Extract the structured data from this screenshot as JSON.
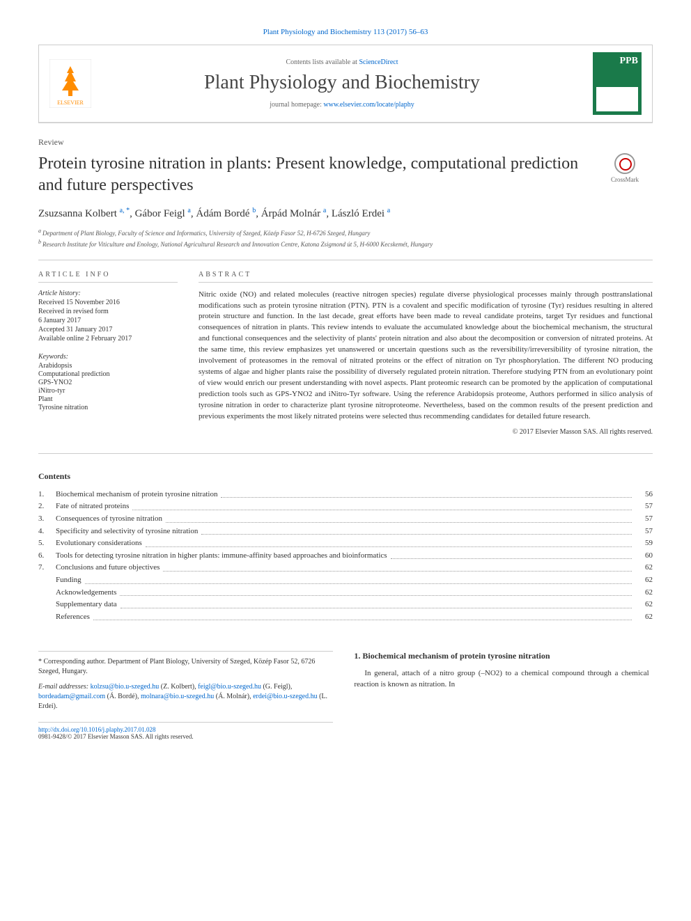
{
  "citation": "Plant Physiology and Biochemistry 113 (2017) 56–63",
  "header": {
    "contents_prefix": "Contents lists available at ",
    "contents_link": "ScienceDirect",
    "journal_name": "Plant Physiology and Biochemistry",
    "homepage_prefix": "journal homepage: ",
    "homepage_url": "www.elsevier.com/locate/plaphy",
    "cover_label": "PPB"
  },
  "article_type": "Review",
  "title": "Protein tyrosine nitration in plants: Present knowledge, computational prediction and future perspectives",
  "crossmark": "CrossMark",
  "authors": [
    {
      "name": "Zsuzsanna Kolbert",
      "sup": "a, *"
    },
    {
      "name": "Gábor Feigl",
      "sup": "a"
    },
    {
      "name": "Ádám Bordé",
      "sup": "b"
    },
    {
      "name": "Árpád Molnár",
      "sup": "a"
    },
    {
      "name": "László Erdei",
      "sup": "a"
    }
  ],
  "affiliations": [
    {
      "sup": "a",
      "text": "Department of Plant Biology, Faculty of Science and Informatics, University of Szeged, Közép Fasor 52, H-6726 Szeged, Hungary"
    },
    {
      "sup": "b",
      "text": "Research Institute for Viticulture and Enology, National Agricultural Research and Innovation Centre, Katona Zsigmond út 5, H-6000 Kecskemét, Hungary"
    }
  ],
  "info_heading": "ARTICLE INFO",
  "history": {
    "label": "Article history:",
    "items": [
      "Received 15 November 2016",
      "Received in revised form",
      "6 January 2017",
      "Accepted 31 January 2017",
      "Available online 2 February 2017"
    ]
  },
  "keywords": {
    "label": "Keywords:",
    "items": [
      "Arabidopsis",
      "Computational prediction",
      "GPS-YNO2",
      "iNitro-tyr",
      "Plant",
      "Tyrosine nitration"
    ]
  },
  "abstract_heading": "ABSTRACT",
  "abstract_text": "Nitric oxide (NO) and related molecules (reactive nitrogen species) regulate diverse physiological processes mainly through posttranslational modifications such as protein tyrosine nitration (PTN). PTN is a covalent and specific modification of tyrosine (Tyr) residues resulting in altered protein structure and function. In the last decade, great efforts have been made to reveal candidate proteins, target Tyr residues and functional consequences of nitration in plants. This review intends to evaluate the accumulated knowledge about the biochemical mechanism, the structural and functional consequences and the selectivity of plants' protein nitration and also about the decomposition or conversion of nitrated proteins. At the same time, this review emphasizes yet unanswered or uncertain questions such as the reversibility/irreversibility of tyrosine nitration, the involvement of proteasomes in the removal of nitrated proteins or the effect of nitration on Tyr phosphorylation. The different NO producing systems of algae and higher plants raise the possibility of diversely regulated protein nitration. Therefore studying PTN from an evolutionary point of view would enrich our present understanding with novel aspects. Plant proteomic research can be promoted by the application of computational prediction tools such as GPS-YNO2 and iNitro-Tyr software. Using the reference Arabidopsis proteome, Authors performed in silico analysis of tyrosine nitration in order to characterize plant tyrosine nitroproteome. Nevertheless, based on the common results of the present prediction and previous experiments the most likely nitrated proteins were selected thus recommending candidates for detailed future research.",
  "abstract_copyright": "© 2017 Elsevier Masson SAS. All rights reserved.",
  "contents_heading": "Contents",
  "toc": [
    {
      "num": "1.",
      "title": "Biochemical mechanism of protein tyrosine nitration",
      "page": "56"
    },
    {
      "num": "2.",
      "title": "Fate of nitrated proteins",
      "page": "57"
    },
    {
      "num": "3.",
      "title": "Consequences of tyrosine nitration",
      "page": "57"
    },
    {
      "num": "4.",
      "title": "Specificity and selectivity of tyrosine nitration",
      "page": "57"
    },
    {
      "num": "5.",
      "title": "Evolutionary considerations",
      "page": "59"
    },
    {
      "num": "6.",
      "title": "Tools for detecting tyrosine nitration in higher plants: immune-affinity based approaches and bioinformatics",
      "page": "60"
    },
    {
      "num": "7.",
      "title": "Conclusions and future objectives",
      "page": "62"
    }
  ],
  "toc_sub": [
    {
      "title": "Funding",
      "page": "62"
    },
    {
      "title": "Acknowledgements",
      "page": "62"
    },
    {
      "title": "Supplementary data",
      "page": "62"
    },
    {
      "title": "References",
      "page": "62"
    }
  ],
  "footer": {
    "corresponding": "* Corresponding author. Department of Plant Biology, University of Szeged, Közép Fasor 52, 6726 Szeged, Hungary.",
    "email_label": "E-mail addresses:",
    "emails": [
      {
        "addr": "kolzsu@bio.u-szeged.hu",
        "name": "(Z. Kolbert)"
      },
      {
        "addr": "feigl@bio.u-szeged.hu",
        "name": "(G. Feigl)"
      },
      {
        "addr": "bordeadam@gmail.com",
        "name": "(Á. Bordé)"
      },
      {
        "addr": "molnara@bio.u-szeged.hu",
        "name": "(Á. Molnár)"
      },
      {
        "addr": "erdei@bio.u-szeged.hu",
        "name": "(L. Erdei)"
      }
    ],
    "doi": "http://dx.doi.org/10.1016/j.plaphy.2017.01.028",
    "issn": "0981-9428/© 2017 Elsevier Masson SAS. All rights reserved.",
    "section1_heading": "1. Biochemical mechanism of protein tyrosine nitration",
    "section1_text": "In general, attach of a nitro group (–NO2) to a chemical compound through a chemical reaction is known as nitration. In"
  },
  "colors": {
    "link": "#0066cc",
    "text": "#333333",
    "border": "#cccccc",
    "elsevier": "#ff8c00",
    "cover": "#1a7a4a"
  }
}
